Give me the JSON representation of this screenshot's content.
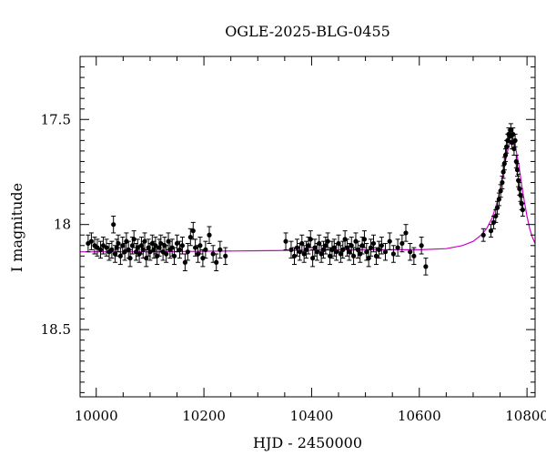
{
  "chart_data": {
    "type": "scatter",
    "title": "OGLE-2025-BLG-0455",
    "xlabel": "HJD - 2450000",
    "ylabel": "I magnitude",
    "xlim": [
      9970,
      10815
    ],
    "ylim": [
      17.2,
      18.82
    ],
    "y_inverted": true,
    "grid": false,
    "x_ticks": [
      10000,
      10200,
      10400,
      10600,
      10800
    ],
    "x_tick_labels": [
      "10000",
      "10200",
      "10400",
      "10600",
      "10800"
    ],
    "y_ticks": [
      17.5,
      18.0,
      18.5
    ],
    "y_tick_labels": [
      "17.5",
      "18",
      "18.5"
    ],
    "marker_color": "#000000",
    "model_color": "#cc00cc",
    "series": [
      {
        "kind": "points",
        "x": [
          9985,
          9991,
          9997,
          10002,
          10008,
          10013,
          10019,
          10024,
          10029,
          10032,
          10035,
          10038,
          10041,
          10045,
          10049,
          10053,
          10056,
          10060,
          10063,
          10067,
          10070,
          10074,
          10077,
          10080,
          10084,
          10087,
          10090,
          10093,
          10097,
          10100,
          10104,
          10107,
          10110,
          10113,
          10117,
          10120,
          10124,
          10127,
          10130,
          10134,
          10137,
          10141,
          10145,
          10150,
          10155,
          10160,
          10165,
          10170,
          10175,
          10180,
          10184,
          10189,
          10193,
          10198,
          10203,
          10210,
          10217,
          10223,
          10230,
          10240,
          10352,
          10362,
          10368,
          10373,
          10378,
          10382,
          10386,
          10390,
          10394,
          10398,
          10402,
          10406,
          10410,
          10414,
          10418,
          10422,
          10426,
          10430,
          10434,
          10438,
          10442,
          10446,
          10450,
          10454,
          10458,
          10462,
          10466,
          10470,
          10474,
          10478,
          10482,
          10486,
          10490,
          10494,
          10498,
          10502,
          10506,
          10510,
          10515,
          10520,
          10525,
          10530,
          10537,
          10545,
          10552,
          10560,
          10568,
          10575,
          10583,
          10590,
          10604,
          10612,
          10719,
          10733,
          10738,
          10742,
          10745,
          10748,
          10751,
          10754,
          10756,
          10758,
          10760,
          10762,
          10764,
          10766,
          10768,
          10770,
          10772,
          10774,
          10776,
          10778,
          10780,
          10782,
          10784,
          10786,
          10788,
          10790,
          10792
        ],
        "y": [
          18.09,
          18.08,
          18.1,
          18.11,
          18.12,
          18.1,
          18.11,
          18.13,
          18.12,
          18.0,
          18.14,
          18.11,
          18.09,
          18.15,
          18.1,
          18.13,
          18.08,
          18.12,
          18.16,
          18.1,
          18.07,
          18.13,
          18.11,
          18.14,
          18.1,
          18.12,
          18.08,
          18.16,
          18.11,
          18.13,
          18.09,
          18.12,
          18.1,
          18.15,
          18.11,
          18.09,
          18.13,
          18.1,
          18.14,
          18.08,
          18.12,
          18.11,
          18.15,
          18.09,
          18.12,
          18.1,
          18.18,
          18.13,
          18.06,
          18.03,
          18.11,
          18.14,
          18.1,
          18.16,
          18.12,
          18.05,
          18.14,
          18.18,
          18.12,
          18.15,
          18.08,
          18.12,
          18.15,
          18.11,
          18.13,
          18.09,
          18.14,
          18.12,
          18.1,
          18.07,
          18.16,
          18.11,
          18.13,
          18.09,
          18.14,
          18.12,
          18.1,
          18.08,
          18.15,
          18.12,
          18.11,
          18.13,
          18.09,
          18.14,
          18.12,
          18.07,
          18.11,
          18.13,
          18.1,
          18.15,
          18.08,
          18.12,
          18.14,
          18.1,
          18.07,
          18.13,
          18.16,
          18.11,
          18.09,
          18.15,
          18.12,
          18.1,
          18.13,
          18.08,
          18.14,
          18.11,
          18.09,
          18.04,
          18.13,
          18.15,
          18.1,
          18.2,
          18.05,
          18.03,
          17.99,
          17.96,
          17.92,
          17.88,
          17.84,
          17.8,
          17.75,
          17.71,
          17.67,
          17.63,
          17.6,
          17.57,
          17.58,
          17.55,
          17.61,
          17.57,
          17.64,
          17.6,
          17.7,
          17.74,
          17.79,
          17.83,
          17.86,
          17.9,
          17.93
        ],
        "yerr": [
          0.04,
          0.04,
          0.04,
          0.04,
          0.04,
          0.04,
          0.04,
          0.04,
          0.04,
          0.04,
          0.04,
          0.04,
          0.04,
          0.04,
          0.04,
          0.04,
          0.04,
          0.04,
          0.04,
          0.04,
          0.04,
          0.04,
          0.04,
          0.04,
          0.04,
          0.04,
          0.04,
          0.04,
          0.04,
          0.04,
          0.04,
          0.04,
          0.04,
          0.04,
          0.04,
          0.04,
          0.04,
          0.04,
          0.04,
          0.04,
          0.04,
          0.04,
          0.04,
          0.04,
          0.04,
          0.04,
          0.04,
          0.04,
          0.04,
          0.04,
          0.04,
          0.04,
          0.04,
          0.04,
          0.04,
          0.04,
          0.04,
          0.04,
          0.04,
          0.04,
          0.04,
          0.04,
          0.04,
          0.04,
          0.04,
          0.04,
          0.04,
          0.04,
          0.04,
          0.04,
          0.04,
          0.04,
          0.04,
          0.04,
          0.04,
          0.04,
          0.04,
          0.04,
          0.04,
          0.04,
          0.04,
          0.04,
          0.04,
          0.04,
          0.04,
          0.04,
          0.04,
          0.04,
          0.04,
          0.04,
          0.04,
          0.04,
          0.04,
          0.04,
          0.04,
          0.04,
          0.04,
          0.04,
          0.04,
          0.04,
          0.04,
          0.04,
          0.04,
          0.04,
          0.04,
          0.04,
          0.04,
          0.04,
          0.04,
          0.04,
          0.04,
          0.04,
          0.03,
          0.03,
          0.03,
          0.03,
          0.03,
          0.03,
          0.03,
          0.03,
          0.03,
          0.03,
          0.03,
          0.03,
          0.03,
          0.03,
          0.03,
          0.03,
          0.03,
          0.03,
          0.03,
          0.03,
          0.03,
          0.03,
          0.03,
          0.03,
          0.03,
          0.03,
          0.03
        ]
      },
      {
        "kind": "model",
        "x": [
          9970,
          10100,
          10300,
          10500,
          10600,
          10650,
          10680,
          10700,
          10715,
          10725,
          10735,
          10745,
          10752,
          10758,
          10764,
          10768,
          10772,
          10776,
          10780,
          10785,
          10790,
          10795,
          10800,
          10805,
          10810,
          10815
        ],
        "y": [
          18.13,
          18.13,
          18.125,
          18.12,
          18.12,
          18.115,
          18.1,
          18.08,
          18.05,
          18.02,
          17.97,
          17.89,
          17.81,
          17.72,
          17.65,
          17.61,
          17.6,
          17.61,
          17.65,
          17.72,
          17.81,
          17.89,
          17.96,
          18.02,
          18.06,
          18.09
        ]
      }
    ]
  }
}
